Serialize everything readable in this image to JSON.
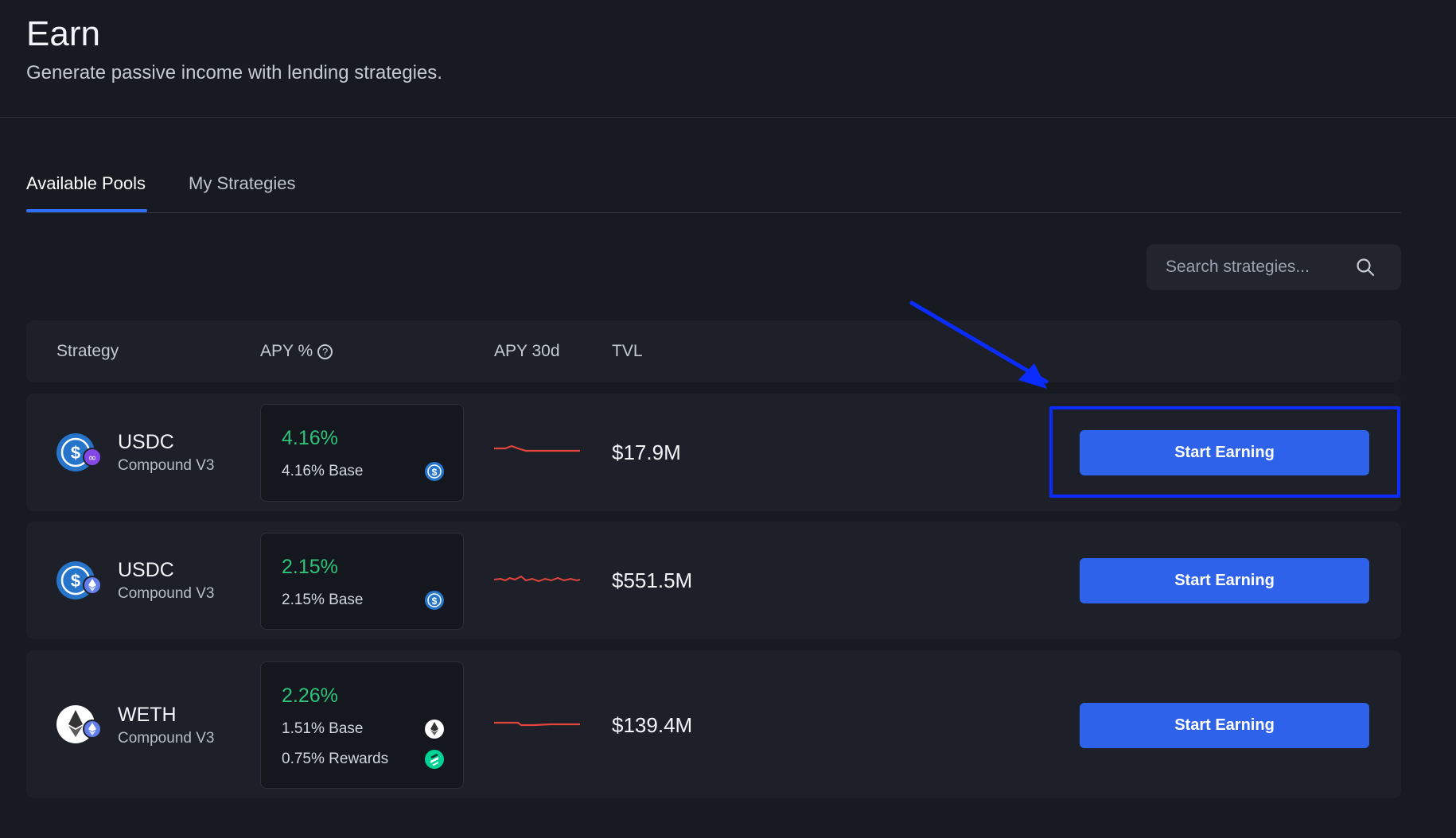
{
  "header": {
    "title": "Earn",
    "subtitle": "Generate passive income with lending strategies."
  },
  "tabs": [
    {
      "label": "Available Pools",
      "active": true
    },
    {
      "label": "My Strategies",
      "active": false
    }
  ],
  "search": {
    "placeholder": "Search strategies...",
    "value": ""
  },
  "table": {
    "columns": {
      "strategy": "Strategy",
      "apy": "APY %",
      "apy30d": "APY 30d",
      "tvl": "TVL"
    },
    "rows": [
      {
        "asset": "USDC",
        "protocol": "Compound V3",
        "asset_icon": "usdc-icon",
        "network_icon": "polygon-icon",
        "apy": "4.16%",
        "breakdown": [
          {
            "text": "4.16% Base",
            "icon": "usdc-icon"
          }
        ],
        "tvl": "$17.9M",
        "action": "Start Earning"
      },
      {
        "asset": "USDC",
        "protocol": "Compound V3",
        "asset_icon": "usdc-icon",
        "network_icon": "ethereum-icon",
        "apy": "2.15%",
        "breakdown": [
          {
            "text": "2.15% Base",
            "icon": "usdc-icon"
          }
        ],
        "tvl": "$551.5M",
        "action": "Start Earning"
      },
      {
        "asset": "WETH",
        "protocol": "Compound V3",
        "asset_icon": "eth-icon",
        "network_icon": "ethereum-icon",
        "apy": "2.26%",
        "breakdown": [
          {
            "text": "1.51% Base",
            "icon": "eth-icon"
          },
          {
            "text": "0.75% Rewards",
            "icon": "comp-icon"
          }
        ],
        "tvl": "$139.4M",
        "action": "Start Earning"
      }
    ]
  },
  "colors": {
    "accent": "#2e62ea",
    "positive": "#2fc27a",
    "sparkline": "#e2453c",
    "annotation": "#0b2cff"
  }
}
